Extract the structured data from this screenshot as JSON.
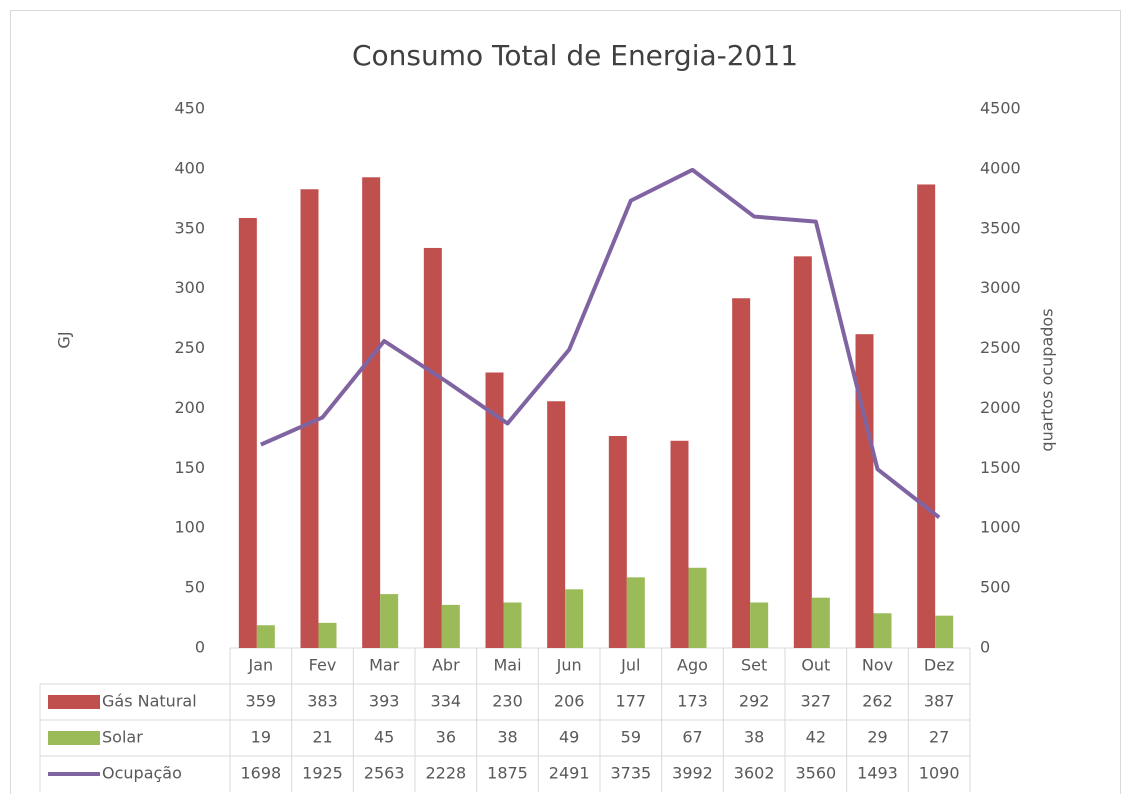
{
  "chart_data": {
    "type": "bar",
    "title": "Consumo Total de Energia-2011",
    "y_label": "GJ",
    "y2_label": "quartos ocupados",
    "categories": [
      "Jan",
      "Fev",
      "Mar",
      "Abr",
      "Mai",
      "Jun",
      "Jul",
      "Ago",
      "Set",
      "Out",
      "Nov",
      "Dez"
    ],
    "series": [
      {
        "name": "Gás Natural",
        "color": "#c0504d",
        "values": [
          359,
          383,
          393,
          334,
          230,
          206,
          177,
          173,
          292,
          327,
          262,
          387
        ]
      },
      {
        "name": "Solar",
        "color": "#9bbb59",
        "values": [
          19,
          21,
          45,
          36,
          38,
          49,
          59,
          67,
          38,
          42,
          29,
          27
        ]
      },
      {
        "name": "Ocupação",
        "color": "#8064a2",
        "type": "line",
        "axis": "y2",
        "values": [
          1698,
          1925,
          2563,
          2228,
          1875,
          2491,
          3735,
          3992,
          3602,
          3560,
          1493,
          1090
        ]
      }
    ],
    "ylim": [
      0,
      450
    ],
    "yticks": [
      0,
      50,
      100,
      150,
      200,
      250,
      300,
      350,
      400,
      450
    ],
    "y2lim": [
      0,
      4500
    ],
    "y2ticks": [
      0,
      500,
      1000,
      1500,
      2000,
      2500,
      3000,
      3500,
      4000,
      4500
    ],
    "data_table": true
  }
}
